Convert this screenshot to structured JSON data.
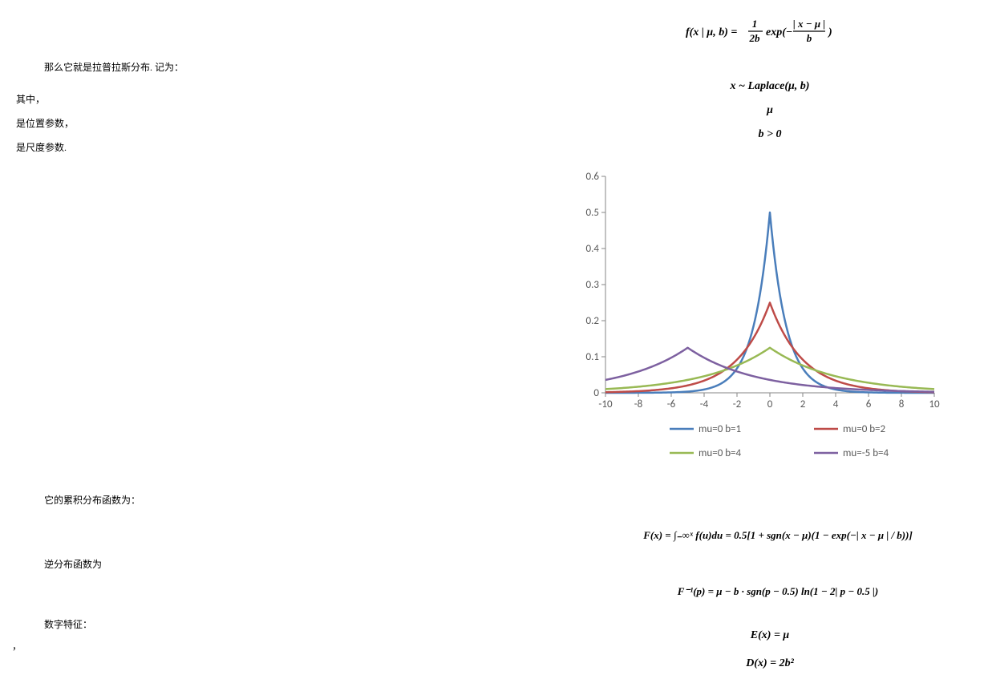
{
  "formulas": {
    "pdf": "f(x | μ, b) = (1 / 2b) · exp( − |x − μ| / b )",
    "notation": "x ~ Laplace(μ, b)",
    "mu": "μ",
    "b": "b > 0",
    "cdf": "F(x) = ∫₋∞ˣ f(u)du = 0.5[1 + sgn(x − μ)(1 − exp(−| x − μ | / b))]",
    "inverse": "F⁻¹(p) = μ − b · sgn(p − 0.5) ln(1 − 2| p − 0.5 |)",
    "mean": "E(x) = μ",
    "var": "D(x) = 2b²"
  },
  "text": {
    "line1": "那么它就是拉普拉斯分布. 记为：",
    "line2": "其中，",
    "line3": "是位置参数，",
    "line4": "是尺度参数.",
    "line5": "它的累积分布函数为：",
    "line6": "逆分布函数为",
    "line7": "数字特征：",
    "comma": "，"
  },
  "chart": {
    "type": "line",
    "background_color": "#ffffff",
    "xlim": [
      -10,
      10
    ],
    "ylim": [
      0,
      0.6
    ],
    "xtick_step": 2,
    "ytick_step": 0.1,
    "xticks": [
      -10,
      -8,
      -6,
      -4,
      -2,
      0,
      2,
      4,
      6,
      8,
      10
    ],
    "yticks": [
      0,
      0.1,
      0.2,
      0.3,
      0.4,
      0.5,
      0.6
    ],
    "axis_color": "#868686",
    "grid_color": "#d9d9d9",
    "grid": false,
    "line_width": 2.5,
    "legend_position": "bottom",
    "series": [
      {
        "label": "mu=0 b=1",
        "color": "#4a7ebb",
        "mu": 0,
        "b": 1
      },
      {
        "label": "mu=0 b=2",
        "color": "#be4b48",
        "mu": 0,
        "b": 2
      },
      {
        "label": "mu=0 b=4",
        "color": "#98b954",
        "mu": 0,
        "b": 4
      },
      {
        "label": "mu=-5 b=4",
        "color": "#7d60a0",
        "mu": -5,
        "b": 4
      }
    ],
    "tick_fontsize": 13,
    "legend_fontsize": 13,
    "text_color": "#595959"
  }
}
